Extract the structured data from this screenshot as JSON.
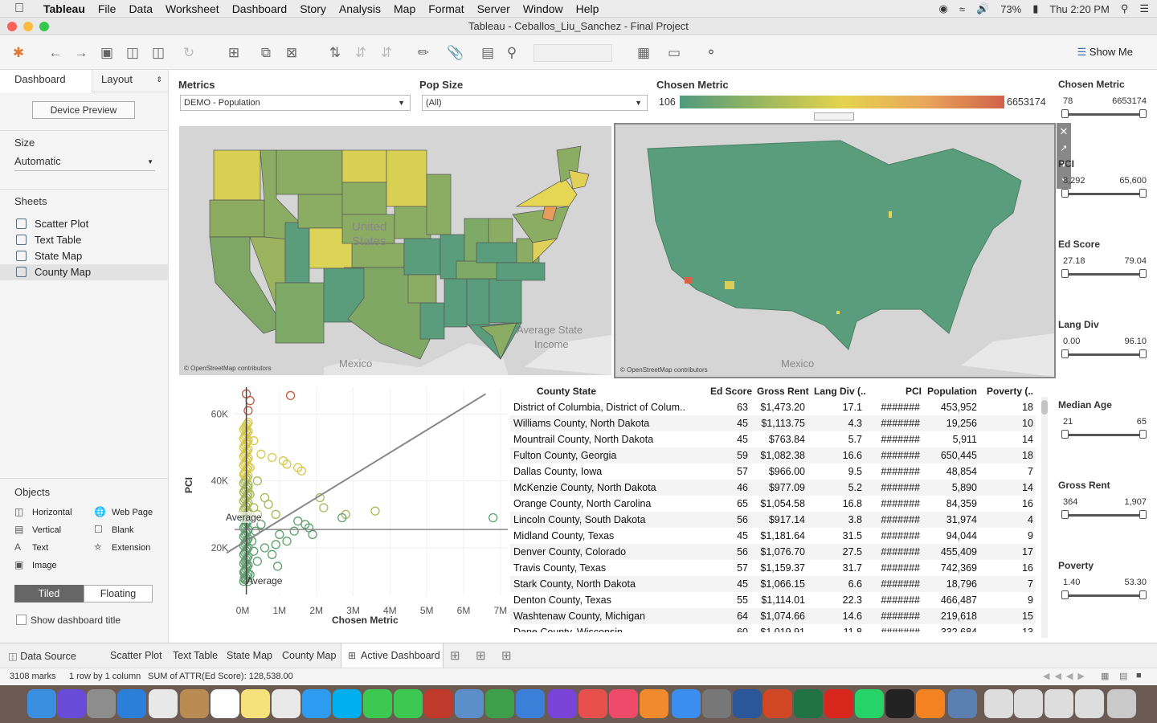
{
  "menubar": {
    "app": "Tableau",
    "items": [
      "File",
      "Data",
      "Worksheet",
      "Dashboard",
      "Story",
      "Analysis",
      "Map",
      "Format",
      "Server",
      "Window",
      "Help"
    ],
    "battery": "73%",
    "clock": "Thu 2:20 PM"
  },
  "window": {
    "title": "Tableau - Ceballos_Liu_Sanchez - Final Project"
  },
  "toolbar": {
    "show_me": "Show Me"
  },
  "left": {
    "tab_dashboard": "Dashboard",
    "tab_layout": "Layout",
    "device_preview": "Device Preview",
    "size_title": "Size",
    "size_value": "Automatic",
    "sheets_title": "Sheets",
    "sheets": [
      "Scatter Plot",
      "Text Table",
      "State Map",
      "County Map"
    ],
    "objects_title": "Objects",
    "objects": [
      "Horizontal",
      "Web Page",
      "Vertical",
      "Blank",
      "Text",
      "Extension",
      "Image"
    ],
    "tiled": "Tiled",
    "floating": "Floating",
    "show_title": "Show dashboard title"
  },
  "filters": {
    "metrics_label": "Metrics",
    "metrics_value": "DEMO - Population",
    "popsize_label": "Pop Size",
    "popsize_value": "(All)",
    "chosen_label": "Chosen Metric",
    "legend_min": "106",
    "legend_max": "6653174"
  },
  "maps": {
    "state_country": "United States",
    "state_title_1": "Average State",
    "state_title_2": "Income",
    "mexico": "Mexico",
    "copyright": "© OpenStreetMap contributors"
  },
  "sliders": [
    {
      "title": "Chosen Metric",
      "min": "78",
      "max": "6653174"
    },
    {
      "title": "PCI",
      "min": "8,292",
      "max": "65,600"
    },
    {
      "title": "Ed Score",
      "min": "27.18",
      "max": "79.04"
    },
    {
      "title": "Lang Div",
      "min": "0.00",
      "max": "96.10"
    },
    {
      "title": "Median Age",
      "min": "21",
      "max": "65"
    },
    {
      "title": "Gross Rent",
      "min": "364",
      "max": "1,907"
    },
    {
      "title": "Poverty",
      "min": "1.40",
      "max": "53.30"
    }
  ],
  "chart_data": {
    "type": "scatter",
    "xlabel": "Chosen Metric",
    "ylabel": "PCI",
    "xticks": [
      "0M",
      "1M",
      "2M",
      "3M",
      "4M",
      "5M",
      "6M",
      "7M"
    ],
    "yticks": [
      "20K",
      "40K",
      "60K"
    ],
    "ref_label_y": "Average",
    "ref_label_x": "Average",
    "xlim": [
      0,
      7200000
    ],
    "ylim": [
      8000,
      68000
    ],
    "points": [
      [
        100000,
        66000
      ],
      [
        200000,
        64000
      ],
      [
        1300000,
        65500
      ],
      [
        150000,
        61000
      ],
      [
        100000,
        55000
      ],
      [
        300000,
        52000
      ],
      [
        500000,
        48000
      ],
      [
        800000,
        47000
      ],
      [
        1100000,
        46000
      ],
      [
        1200000,
        45000
      ],
      [
        1500000,
        44000
      ],
      [
        1600000,
        43000
      ],
      [
        2100000,
        35000
      ],
      [
        2200000,
        32000
      ],
      [
        3600000,
        31000
      ],
      [
        2800000,
        30000
      ],
      [
        2700000,
        29000
      ],
      [
        1500000,
        28000
      ],
      [
        1700000,
        27000
      ],
      [
        1800000,
        26000
      ],
      [
        1400000,
        25000
      ],
      [
        1000000,
        24000
      ],
      [
        1900000,
        24000
      ],
      [
        1200000,
        22000
      ],
      [
        900000,
        21000
      ],
      [
        600000,
        20000
      ],
      [
        800000,
        18000
      ],
      [
        950000,
        14500
      ],
      [
        6800000,
        29000
      ],
      [
        200000,
        36000
      ],
      [
        300000,
        32000
      ],
      [
        400000,
        30000
      ],
      [
        500000,
        27000
      ],
      [
        250000,
        22000
      ],
      [
        300000,
        19000
      ],
      [
        400000,
        16000
      ],
      [
        100000,
        15000
      ],
      [
        50000,
        13000
      ],
      [
        200000,
        12000
      ],
      [
        150000,
        10000
      ],
      [
        50000,
        11000
      ],
      [
        100000,
        28000
      ],
      [
        150000,
        38000
      ],
      [
        200000,
        44000
      ],
      [
        400000,
        40000
      ],
      [
        600000,
        35000
      ],
      [
        700000,
        33000
      ],
      [
        900000,
        30000
      ],
      [
        350000,
        25000
      ],
      [
        50000,
        42000
      ]
    ],
    "trend": [
      [
        0,
        18500
      ],
      [
        6600000,
        66000
      ]
    ],
    "avg_x": 100000,
    "avg_y": 25500
  },
  "table": {
    "headers": [
      "County State",
      "Ed Score",
      "Gross Rent",
      "Lang Div (..",
      "PCI",
      "Population",
      "Poverty (.."
    ],
    "rows": [
      [
        "District of Columbia,  District of Colum..",
        "63",
        "$1,473.20",
        "17.1",
        "#######",
        "453,952",
        "18"
      ],
      [
        "Williams County,  North Dakota",
        "45",
        "$1,113.75",
        "4.3",
        "#######",
        "19,256",
        "10"
      ],
      [
        "Mountrail County,  North Dakota",
        "45",
        "$763.84",
        "5.7",
        "#######",
        "5,911",
        "14"
      ],
      [
        "Fulton County,  Georgia",
        "59",
        "$1,082.38",
        "16.6",
        "#######",
        "650,445",
        "18"
      ],
      [
        "Dallas County,  Iowa",
        "57",
        "$966.00",
        "9.5",
        "#######",
        "48,854",
        "7"
      ],
      [
        "McKenzie County,  North Dakota",
        "46",
        "$977.09",
        "5.2",
        "#######",
        "5,890",
        "14"
      ],
      [
        "Orange County,  North Carolina",
        "65",
        "$1,054.58",
        "16.8",
        "#######",
        "84,359",
        "16"
      ],
      [
        "Lincoln County,  South Dakota",
        "56",
        "$917.14",
        "3.8",
        "#######",
        "31,974",
        "4"
      ],
      [
        "Midland County,  Texas",
        "45",
        "$1,181.64",
        "31.5",
        "#######",
        "94,044",
        "9"
      ],
      [
        "Denver County,  Colorado",
        "56",
        "$1,076.70",
        "27.5",
        "#######",
        "455,409",
        "17"
      ],
      [
        "Travis County,  Texas",
        "57",
        "$1,159.37",
        "31.7",
        "#######",
        "742,369",
        "16"
      ],
      [
        "Stark County,  North Dakota",
        "45",
        "$1,066.15",
        "6.6",
        "#######",
        "18,796",
        "7"
      ],
      [
        "Denton County,  Texas",
        "55",
        "$1,114.01",
        "22.3",
        "#######",
        "466,487",
        "9"
      ],
      [
        "Washtenaw County,  Michigan",
        "64",
        "$1,074.66",
        "14.6",
        "#######",
        "219,618",
        "15"
      ],
      [
        "Dane County,  Wisconsin",
        "60",
        "$1,019.91",
        "11.8",
        "#######",
        "332,684",
        "13"
      ]
    ]
  },
  "bottom_tabs": [
    "Data Source",
    "Scatter Plot",
    "Text Table",
    "State Map",
    "County Map",
    "Active Dashboard"
  ],
  "status": {
    "marks": "3108 marks",
    "rows": "1 row by 1 column",
    "sum": "SUM of ATTR(Ed Score): 128,538.00"
  }
}
